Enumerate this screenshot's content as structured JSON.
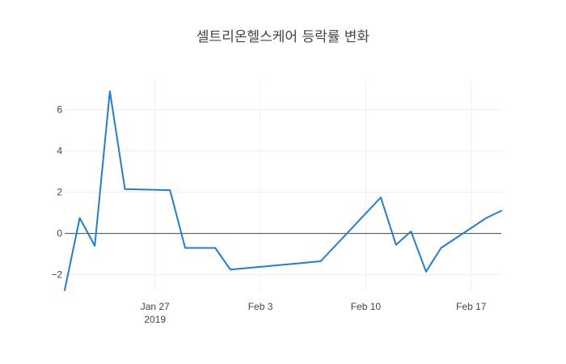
{
  "chart_data": {
    "type": "line",
    "title": "셀트리온헬스케어 등락률 변화",
    "xlabel": "",
    "ylabel": "",
    "x_axis_type": "date",
    "xlim": [
      "2019-01-21",
      "2019-02-19"
    ],
    "ylim": [
      -2.8,
      7.4
    ],
    "grid": true,
    "zero_line": true,
    "x_ticks": [
      {
        "date": "2019-01-27",
        "label": "Jan 27",
        "sublabel": "2019"
      },
      {
        "date": "2019-02-03",
        "label": "Feb 3",
        "sublabel": ""
      },
      {
        "date": "2019-02-10",
        "label": "Feb 10",
        "sublabel": ""
      },
      {
        "date": "2019-02-17",
        "label": "Feb 17",
        "sublabel": ""
      }
    ],
    "y_ticks": [
      {
        "value": -2,
        "label": "−2"
      },
      {
        "value": 0,
        "label": "0"
      },
      {
        "value": 2,
        "label": "2"
      },
      {
        "value": 4,
        "label": "4"
      },
      {
        "value": 6,
        "label": "6"
      }
    ],
    "series": [
      {
        "color": "#1f7ed8",
        "x": [
          "2019-01-21",
          "2019-01-22",
          "2019-01-23",
          "2019-01-24",
          "2019-01-25",
          "2019-01-28",
          "2019-01-29",
          "2019-01-31",
          "2019-02-01",
          "2019-02-07",
          "2019-02-11",
          "2019-02-12",
          "2019-02-13",
          "2019-02-14",
          "2019-02-15",
          "2019-02-18",
          "2019-02-19"
        ],
        "y": [
          -2.75,
          0.75,
          -0.6,
          6.9,
          2.15,
          2.1,
          -0.7,
          -0.7,
          -1.75,
          -1.35,
          1.75,
          -0.55,
          0.1,
          -1.85,
          -0.7,
          0.75,
          1.1
        ]
      }
    ]
  }
}
